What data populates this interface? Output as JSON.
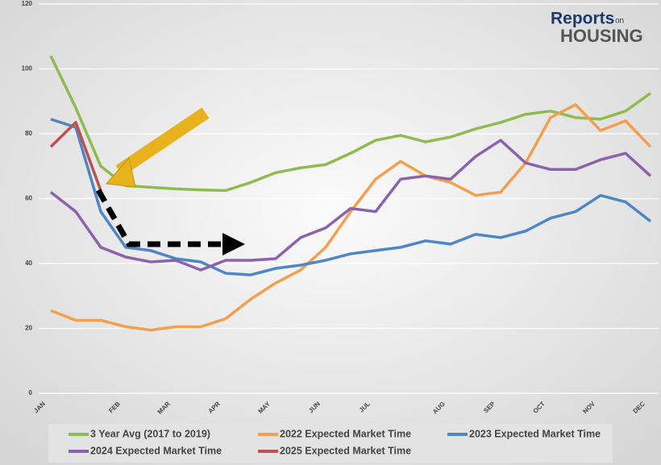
{
  "chart_data": {
    "type": "line",
    "categories": [
      "JAN",
      null,
      null,
      "FEB",
      null,
      "MAR",
      null,
      "APR",
      null,
      "MAY",
      null,
      "JUN",
      null,
      "JUL",
      null,
      null,
      "AUG",
      null,
      "SEP",
      null,
      "OCT",
      null,
      "NOV",
      null,
      "DEC"
    ],
    "series": [
      {
        "name": "3 Year Avg (2017 to 2019)",
        "color": "#8fbc4f",
        "values": [
          104,
          88,
          70,
          64,
          63.5,
          63,
          62.7,
          62.5,
          65,
          68,
          69.5,
          70.5,
          74,
          78,
          79.5,
          77.5,
          79,
          81.5,
          83.5,
          86,
          87,
          85,
          84.5,
          87,
          92.5
        ]
      },
      {
        "name": "2022 Expected Market Time",
        "color": "#f2a04e",
        "values": [
          25.5,
          22.5,
          22.5,
          20.5,
          19.5,
          20.5,
          20.5,
          23,
          29,
          34,
          38,
          45,
          56,
          66,
          71.5,
          67,
          65,
          61,
          62,
          71,
          85,
          89,
          81,
          84,
          76
        ]
      },
      {
        "name": "2023 Expected Market Time",
        "color": "#4f86c6",
        "values": [
          84.5,
          82,
          56,
          45,
          44,
          41.5,
          40.5,
          37,
          36.5,
          38.5,
          39.5,
          41,
          43,
          44,
          45,
          47,
          46,
          49,
          48,
          50,
          54,
          56,
          61,
          59,
          53
        ]
      },
      {
        "name": "2024 Expected Market Time",
        "color": "#8a62ad",
        "values": [
          62,
          56,
          45,
          42,
          40.5,
          41,
          38,
          41,
          41,
          41.5,
          48,
          51,
          57,
          56,
          66,
          67,
          66,
          73,
          78,
          71,
          69,
          69,
          72,
          74,
          67
        ]
      },
      {
        "name": "2025 Expected Market Time",
        "color": "#c0504d",
        "values": [
          76,
          83.5,
          62.5,
          null,
          null,
          null,
          null,
          null,
          null,
          null,
          null,
          null,
          null,
          null,
          null,
          null,
          null,
          null,
          null,
          null,
          null,
          null,
          null,
          null,
          null
        ]
      }
    ],
    "ylim": [
      0,
      120
    ],
    "yticks": [
      0,
      20,
      40,
      60,
      80,
      100,
      120
    ],
    "grid": true
  },
  "logo": {
    "line1": "Reports",
    "small": "on",
    "line2": "HOUSING"
  }
}
